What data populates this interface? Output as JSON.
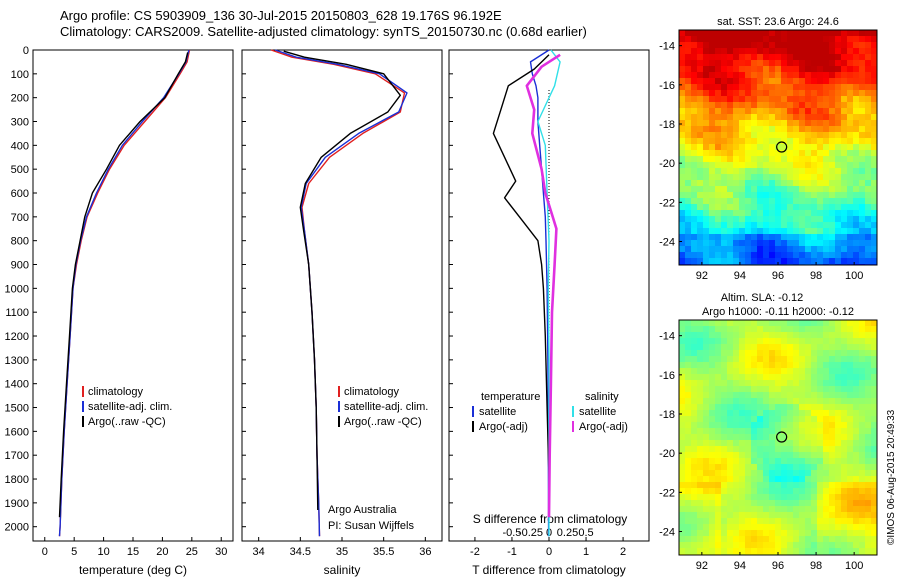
{
  "header": {
    "line1": "Argo profile: CS 5903909_136 30-Jul-2015 20150803_628 19.176S 96.192E",
    "line2": "Climatology: CARS2009. Satellite-adjusted climatology: synTS_20150730.nc (0.68d earlier)"
  },
  "credit": "©IMOS 06-Aug-2015 20:49:33",
  "colors": {
    "climatology": "#e02020",
    "satellite": "#1a2fd6",
    "argo": "#000000",
    "salinity_satellite": "#30e0e8",
    "salinity_argo": "#e030e0"
  },
  "chart_data": [
    {
      "id": "temperature",
      "type": "line",
      "xlabel": "temperature (deg C)",
      "ylabel": "",
      "xlim": [
        -2,
        32
      ],
      "ylim": [
        2060,
        0
      ],
      "xticks": [
        0,
        5,
        10,
        15,
        20,
        25,
        30
      ],
      "yticks": [
        0,
        100,
        200,
        300,
        400,
        500,
        600,
        700,
        800,
        900,
        1000,
        1100,
        1200,
        1300,
        1400,
        1500,
        1600,
        1700,
        1800,
        1900,
        2000
      ],
      "legend": [
        "climatology",
        "satellite-adj. clim.",
        "Argo(..raw -QC)"
      ],
      "series": [
        {
          "name": "climatology",
          "color": "#e02020",
          "points": [
            [
              24.6,
              0
            ],
            [
              24.2,
              50
            ],
            [
              23,
              100
            ],
            [
              20.5,
              200
            ],
            [
              17,
              300
            ],
            [
              13.5,
              400
            ],
            [
              11,
              500
            ],
            [
              9,
              600
            ],
            [
              7.2,
              700
            ],
            [
              6.2,
              800
            ],
            [
              5.4,
              900
            ],
            [
              4.8,
              1000
            ],
            [
              4.3,
              1200
            ],
            [
              3.8,
              1400
            ],
            [
              3.3,
              1600
            ],
            [
              2.9,
              1800
            ],
            [
              2.6,
              2000
            ],
            [
              2.5,
              2040
            ]
          ]
        },
        {
          "name": "satellite-adj. clim.",
          "color": "#1a2fd6",
          "points": [
            [
              24.5,
              0
            ],
            [
              24,
              50
            ],
            [
              22.8,
              100
            ],
            [
              20.2,
              200
            ],
            [
              16.6,
              300
            ],
            [
              13.2,
              400
            ],
            [
              10.8,
              500
            ],
            [
              8.8,
              600
            ],
            [
              7.1,
              700
            ],
            [
              6.1,
              800
            ],
            [
              5.3,
              900
            ],
            [
              4.8,
              1000
            ],
            [
              4.3,
              1200
            ],
            [
              3.8,
              1400
            ],
            [
              3.3,
              1600
            ],
            [
              2.9,
              1800
            ],
            [
              2.6,
              2000
            ],
            [
              2.5,
              2040
            ]
          ]
        },
        {
          "name": "Argo(..raw -QC)",
          "color": "#000000",
          "points": [
            [
              24.3,
              10
            ],
            [
              23.9,
              50
            ],
            [
              22.7,
              100
            ],
            [
              20.4,
              200
            ],
            [
              16.2,
              300
            ],
            [
              12.7,
              400
            ],
            [
              10.5,
              500
            ],
            [
              8.1,
              600
            ],
            [
              6.8,
              700
            ],
            [
              6,
              800
            ],
            [
              5.2,
              900
            ],
            [
              4.7,
              1000
            ],
            [
              4.2,
              1200
            ],
            [
              3.7,
              1400
            ],
            [
              3.2,
              1600
            ],
            [
              2.8,
              1800
            ],
            [
              2.5,
              1960
            ]
          ]
        }
      ]
    },
    {
      "id": "salinity",
      "type": "line",
      "xlabel": "salinity",
      "ylabel": "",
      "xlim": [
        33.8,
        36.2
      ],
      "ylim": [
        2060,
        0
      ],
      "xticks": [
        34,
        34.5,
        35,
        35.5,
        36
      ],
      "legend": [
        "climatology",
        "satellite-adj. clim.",
        "Argo(..raw -QC)"
      ],
      "annotation": [
        "Argo Australia",
        "PI: Susan Wijffels"
      ],
      "series": [
        {
          "name": "climatology",
          "color": "#e02020",
          "points": [
            [
              34.15,
              0
            ],
            [
              34.4,
              30
            ],
            [
              34.9,
              60
            ],
            [
              35.4,
              100
            ],
            [
              35.75,
              180
            ],
            [
              35.7,
              260
            ],
            [
              35.25,
              350
            ],
            [
              34.85,
              450
            ],
            [
              34.6,
              560
            ],
            [
              34.52,
              660
            ],
            [
              34.55,
              760
            ],
            [
              34.6,
              900
            ],
            [
              34.64,
              1100
            ],
            [
              34.67,
              1300
            ],
            [
              34.69,
              1500
            ],
            [
              34.7,
              1700
            ],
            [
              34.72,
              1900
            ],
            [
              34.73,
              2040
            ]
          ]
        },
        {
          "name": "satellite-adj. clim.",
          "color": "#1a2fd6",
          "points": [
            [
              34.2,
              0
            ],
            [
              34.45,
              30
            ],
            [
              34.95,
              60
            ],
            [
              35.45,
              100
            ],
            [
              35.78,
              180
            ],
            [
              35.68,
              260
            ],
            [
              35.2,
              350
            ],
            [
              34.8,
              450
            ],
            [
              34.57,
              560
            ],
            [
              34.51,
              660
            ],
            [
              34.55,
              760
            ],
            [
              34.6,
              900
            ],
            [
              34.64,
              1100
            ],
            [
              34.67,
              1300
            ],
            [
              34.69,
              1500
            ],
            [
              34.7,
              1700
            ],
            [
              34.72,
              1900
            ],
            [
              34.73,
              2040
            ]
          ]
        },
        {
          "name": "Argo(..raw -QC)",
          "color": "#000000",
          "points": [
            [
              34.3,
              5
            ],
            [
              34.55,
              30
            ],
            [
              35.05,
              60
            ],
            [
              35.5,
              100
            ],
            [
              35.7,
              190
            ],
            [
              35.55,
              260
            ],
            [
              35.1,
              350
            ],
            [
              34.75,
              450
            ],
            [
              34.56,
              560
            ],
            [
              34.5,
              660
            ],
            [
              34.54,
              760
            ],
            [
              34.6,
              900
            ],
            [
              34.64,
              1100
            ],
            [
              34.67,
              1300
            ],
            [
              34.69,
              1500
            ],
            [
              34.7,
              1700
            ],
            [
              34.71,
              1930
            ]
          ]
        }
      ]
    },
    {
      "id": "difference",
      "type": "line",
      "xlabel": "T difference from climatology",
      "xlabel_top": "S difference from climatology",
      "xlim": [
        -2.7,
        2.7
      ],
      "ylim": [
        2060,
        0
      ],
      "xticks": [
        -2,
        -1,
        0,
        1,
        2
      ],
      "xticks_top": [
        "-0.5",
        "-0.25",
        "0",
        "0.25",
        "0.5"
      ],
      "legend_temperature": {
        "title": "temperature",
        "items": [
          "satellite",
          "Argo(-adj)"
        ]
      },
      "legend_salinity": {
        "title": "salinity",
        "items": [
          "satellite",
          "Argo(-adj)"
        ]
      },
      "series": [
        {
          "name": "temperature satellite",
          "color": "#1a2fd6",
          "points": [
            [
              0,
              0
            ],
            [
              -0.5,
              50
            ],
            [
              -0.45,
              100
            ],
            [
              -0.35,
              150
            ],
            [
              -0.3,
              200
            ],
            [
              -0.3,
              300
            ],
            [
              -0.25,
              400
            ],
            [
              -0.2,
              500
            ],
            [
              -0.15,
              600
            ],
            [
              -0.1,
              700
            ],
            [
              -0.08,
              800
            ],
            [
              -0.05,
              1000
            ],
            [
              -0.03,
              1300
            ],
            [
              -0.02,
              1600
            ],
            [
              -0.01,
              2040
            ]
          ]
        },
        {
          "name": "temperature Argo(-adj)",
          "color": "#000000",
          "points": [
            [
              0,
              20
            ],
            [
              -0.4,
              80
            ],
            [
              -1.1,
              150
            ],
            [
              -1.3,
              250
            ],
            [
              -1.5,
              350
            ],
            [
              -1.2,
              450
            ],
            [
              -0.9,
              550
            ],
            [
              -1.2,
              620
            ],
            [
              -0.7,
              720
            ],
            [
              -0.3,
              800
            ],
            [
              -0.2,
              900
            ],
            [
              -0.15,
              1000
            ],
            [
              -0.1,
              1200
            ],
            [
              -0.05,
              1500
            ],
            [
              0,
              1800
            ],
            [
              0,
              1960
            ]
          ]
        },
        {
          "name": "salinity satellite",
          "color": "#30e0e8",
          "points": [
            [
              0.05,
              0
            ],
            [
              0.3,
              50
            ],
            [
              0.15,
              150
            ],
            [
              -0.3,
              300
            ],
            [
              -0.1,
              400
            ],
            [
              -0.05,
              600
            ],
            [
              0,
              800
            ],
            [
              -0.02,
              1000
            ],
            [
              0,
              1300
            ],
            [
              0,
              1600
            ],
            [
              0,
              2040
            ]
          ]
        },
        {
          "name": "salinity Argo(-adj)",
          "color": "#e030e0",
          "points": [
            [
              0.3,
              20
            ],
            [
              -0.2,
              70
            ],
            [
              -0.6,
              150
            ],
            [
              -0.4,
              250
            ],
            [
              -0.45,
              350
            ],
            [
              -0.2,
              500
            ],
            [
              -0.1,
              600
            ],
            [
              0.1,
              700
            ],
            [
              0.2,
              750
            ],
            [
              0.15,
              900
            ],
            [
              0.08,
              1100
            ],
            [
              0.05,
              1400
            ],
            [
              0.02,
              1700
            ],
            [
              0,
              1960
            ]
          ]
        }
      ]
    },
    {
      "id": "sst_map",
      "type": "heatmap",
      "title": "sat. SST: 23.6 Argo: 24.6",
      "xlim": [
        90.8,
        101.2
      ],
      "ylim": [
        -25.2,
        -13.2
      ],
      "xticks": [
        92,
        94,
        96,
        98,
        100
      ],
      "yticks": [
        -14,
        -16,
        -18,
        -20,
        -22,
        -24
      ],
      "marker": {
        "lon": 96.192,
        "lat": -19.176
      }
    },
    {
      "id": "sla_map",
      "type": "heatmap",
      "title_lines": [
        "Altim. SLA: -0.12",
        "Argo h1000: -0.11 h2000: -0.12"
      ],
      "xlim": [
        90.8,
        101.2
      ],
      "ylim": [
        -25.2,
        -13.2
      ],
      "xticks": [
        92,
        94,
        96,
        98,
        100
      ],
      "yticks": [
        -14,
        -16,
        -18,
        -20,
        -22,
        -24
      ],
      "marker": {
        "lon": 96.192,
        "lat": -19.176
      }
    }
  ]
}
